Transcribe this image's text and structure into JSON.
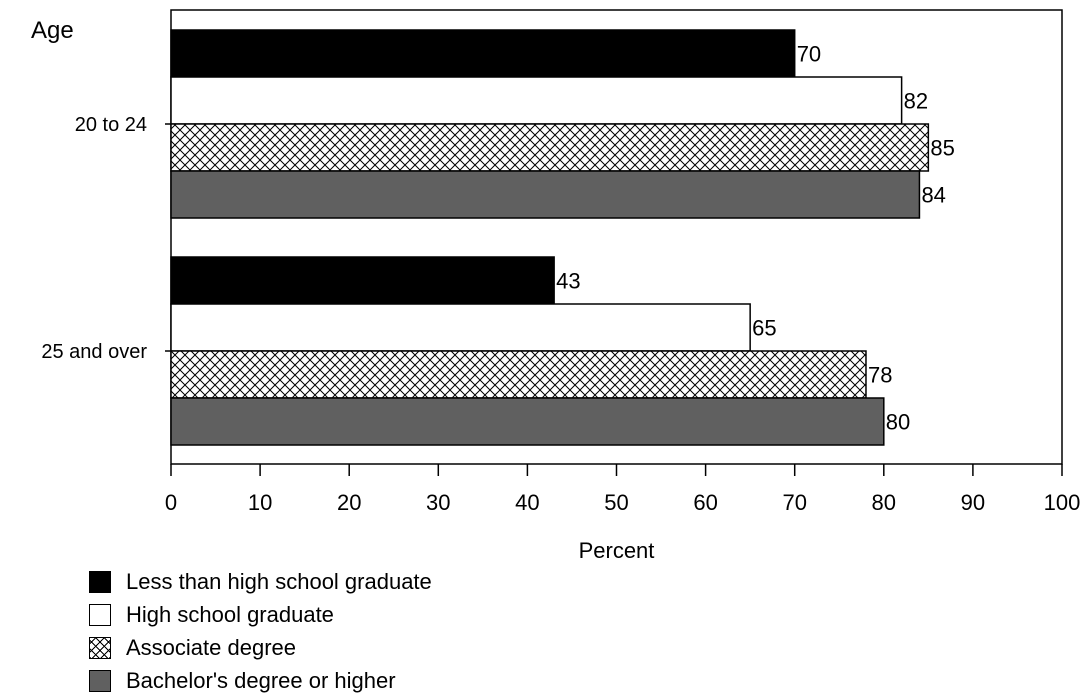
{
  "chart_data": {
    "type": "bar",
    "orientation": "horizontal",
    "y_axis_title": "Age",
    "xlabel": "Percent",
    "categories": [
      "20 to 24",
      "25 and over"
    ],
    "xlim": [
      0,
      100
    ],
    "x_ticks": [
      0,
      10,
      20,
      30,
      40,
      50,
      60,
      70,
      80,
      90,
      100
    ],
    "grid": false,
    "legend_position": "bottom-left",
    "series": [
      {
        "name": "Less than high school graduate",
        "values": [
          70,
          43
        ],
        "color": "#000000",
        "pattern": "solid"
      },
      {
        "name": "High school graduate",
        "values": [
          82,
          65
        ],
        "color": "#ffffff",
        "pattern": "solid"
      },
      {
        "name": "Associate degree",
        "values": [
          85,
          78
        ],
        "color": "#ffffff",
        "pattern": "crosshatch"
      },
      {
        "name": "Bachelor's degree or higher",
        "values": [
          84,
          80
        ],
        "color": "#606060",
        "pattern": "solid"
      }
    ]
  }
}
